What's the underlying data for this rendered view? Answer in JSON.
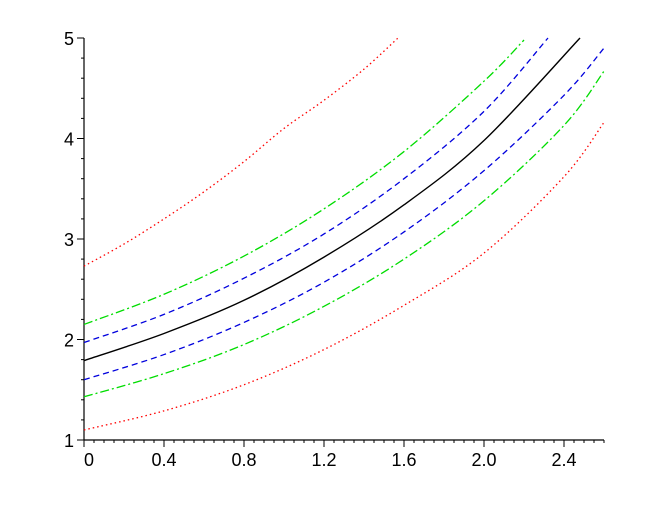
{
  "chart_data": {
    "type": "line",
    "title": "",
    "xlabel": "",
    "ylabel": "",
    "xlim": [
      0,
      2.6
    ],
    "ylim": [
      1,
      5
    ],
    "x_ticks": [
      0,
      0.4,
      0.8,
      1.2,
      1.6,
      2.0,
      2.4
    ],
    "x_tick_labels": [
      "0",
      "0.4",
      "0.8",
      "1.2",
      "1.6",
      "2.0",
      "2.4"
    ],
    "x_minor_step": 0.05,
    "y_ticks": [
      1,
      2,
      3,
      4,
      5
    ],
    "y_tick_labels": [
      "1",
      "2",
      "3",
      "4",
      "5"
    ],
    "y_minor_step": 0.2,
    "grid": false,
    "legend": "none",
    "series": [
      {
        "color": "#ff0000",
        "dash": "dotted",
        "points": [
          [
            0,
            2.73
          ],
          [
            0.2,
            2.95
          ],
          [
            0.4,
            3.2
          ],
          [
            0.6,
            3.47
          ],
          [
            0.8,
            3.77
          ],
          [
            1.0,
            4.1
          ],
          [
            1.2,
            4.38
          ],
          [
            1.4,
            4.69
          ],
          [
            1.57,
            5.0
          ]
        ]
      },
      {
        "color": "#00dd00",
        "dash": "dashdot",
        "points": [
          [
            0,
            2.15
          ],
          [
            0.4,
            2.45
          ],
          [
            0.8,
            2.83
          ],
          [
            1.2,
            3.3
          ],
          [
            1.6,
            3.87
          ],
          [
            2.0,
            4.57
          ],
          [
            2.2,
            4.98
          ]
        ]
      },
      {
        "color": "#0000dd",
        "dash": "dashed",
        "points": [
          [
            0,
            1.97
          ],
          [
            0.4,
            2.25
          ],
          [
            0.8,
            2.61
          ],
          [
            1.2,
            3.05
          ],
          [
            1.6,
            3.6
          ],
          [
            2.0,
            4.27
          ],
          [
            2.32,
            5.0
          ]
        ]
      },
      {
        "color": "#000000",
        "dash": "solid",
        "points": [
          [
            0,
            1.79
          ],
          [
            0.4,
            2.06
          ],
          [
            0.8,
            2.39
          ],
          [
            1.2,
            2.82
          ],
          [
            1.6,
            3.34
          ],
          [
            2.0,
            3.98
          ],
          [
            2.48,
            5.0
          ]
        ]
      },
      {
        "color": "#0000dd",
        "dash": "dashed",
        "points": [
          [
            0,
            1.6
          ],
          [
            0.4,
            1.85
          ],
          [
            0.8,
            2.17
          ],
          [
            1.2,
            2.57
          ],
          [
            1.6,
            3.07
          ],
          [
            2.0,
            3.68
          ],
          [
            2.4,
            4.43
          ],
          [
            2.6,
            4.9
          ]
        ]
      },
      {
        "color": "#00dd00",
        "dash": "dashdot",
        "points": [
          [
            0,
            1.43
          ],
          [
            0.4,
            1.66
          ],
          [
            0.8,
            1.95
          ],
          [
            1.2,
            2.33
          ],
          [
            1.6,
            2.8
          ],
          [
            2.0,
            3.38
          ],
          [
            2.4,
            4.13
          ],
          [
            2.6,
            4.67
          ]
        ]
      },
      {
        "color": "#ff0000",
        "dash": "dotted",
        "points": [
          [
            0,
            1.1
          ],
          [
            0.4,
            1.29
          ],
          [
            0.8,
            1.55
          ],
          [
            1.2,
            1.9
          ],
          [
            1.6,
            2.34
          ],
          [
            2.0,
            2.86
          ],
          [
            2.4,
            3.62
          ],
          [
            2.6,
            4.16
          ]
        ]
      }
    ]
  }
}
